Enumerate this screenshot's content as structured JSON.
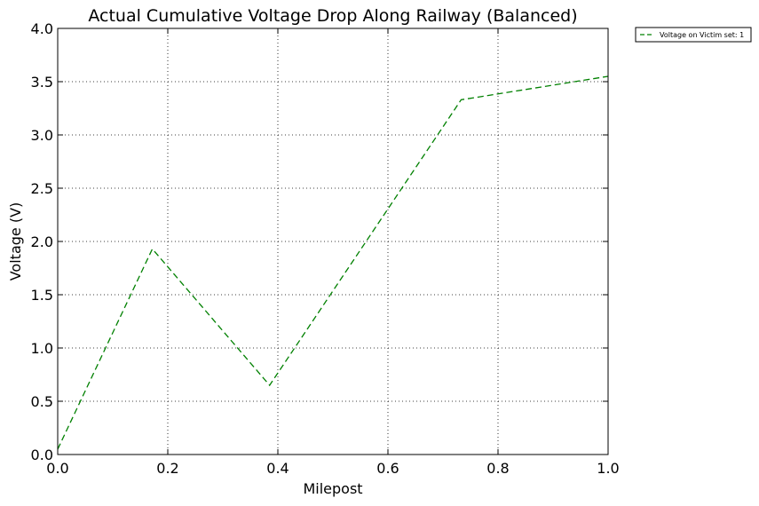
{
  "chart_data": {
    "type": "line",
    "title": "Actual Cumulative Voltage Drop Along Railway (Balanced)",
    "xlabel": "Milepost",
    "ylabel": "Voltage  (V)",
    "xlim": [
      0.0,
      1.0
    ],
    "ylim": [
      0.0,
      4.0
    ],
    "xticks": [
      0.0,
      0.2,
      0.4,
      0.6,
      0.8,
      1.0
    ],
    "xtick_labels": [
      "0.0",
      "0.2",
      "0.4",
      "0.6",
      "0.8",
      "1.0"
    ],
    "yticks": [
      0.0,
      0.5,
      1.0,
      1.5,
      2.0,
      2.5,
      3.0,
      3.5,
      4.0
    ],
    "ytick_labels": [
      "0.0",
      "0.5",
      "1.0",
      "1.5",
      "2.0",
      "2.5",
      "3.0",
      "3.5",
      "4.0"
    ],
    "grid": true,
    "grid_style": "dotted",
    "legend_position": "outside-top-right",
    "series": [
      {
        "name": "Voltage on Victim set: 1",
        "color": "#008000",
        "line_style": "dashed",
        "x": [
          0.0,
          0.172,
          0.385,
          0.733,
          1.0
        ],
        "y": [
          0.05,
          1.93,
          0.65,
          3.33,
          3.55
        ]
      }
    ]
  }
}
